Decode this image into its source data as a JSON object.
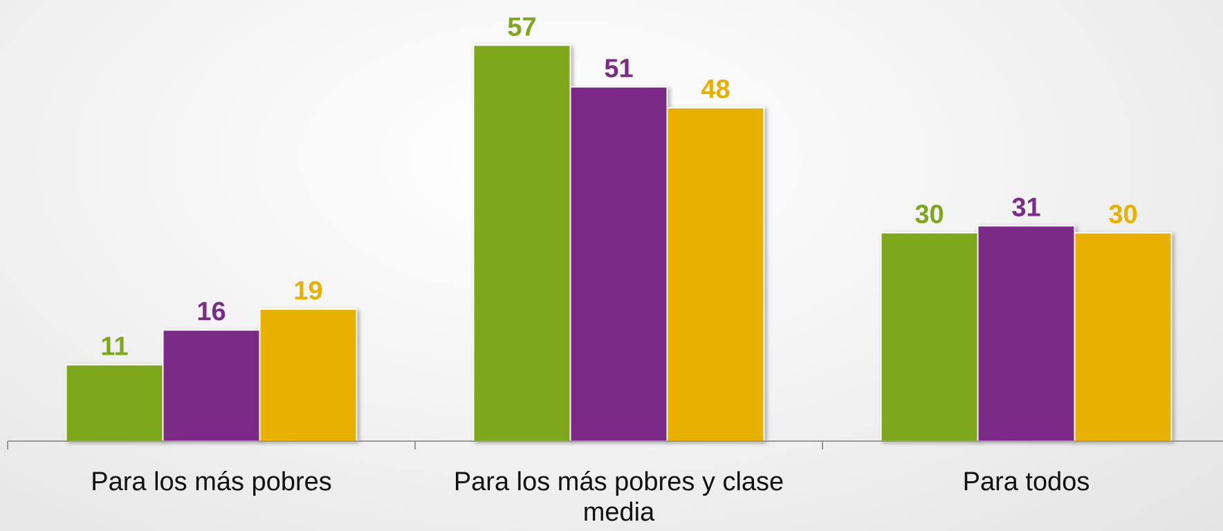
{
  "chart_data": {
    "type": "bar",
    "categories": [
      "Para los más pobres",
      "Para los más pobres y clase media",
      "Para todos"
    ],
    "series": [
      {
        "color": "#7ea71e",
        "values": [
          11,
          57,
          30
        ]
      },
      {
        "color": "#7b2c87",
        "values": [
          16,
          51,
          31
        ]
      },
      {
        "color": "#e8b100",
        "values": [
          19,
          48,
          30
        ]
      }
    ],
    "ylim": [
      0,
      63.5
    ]
  }
}
